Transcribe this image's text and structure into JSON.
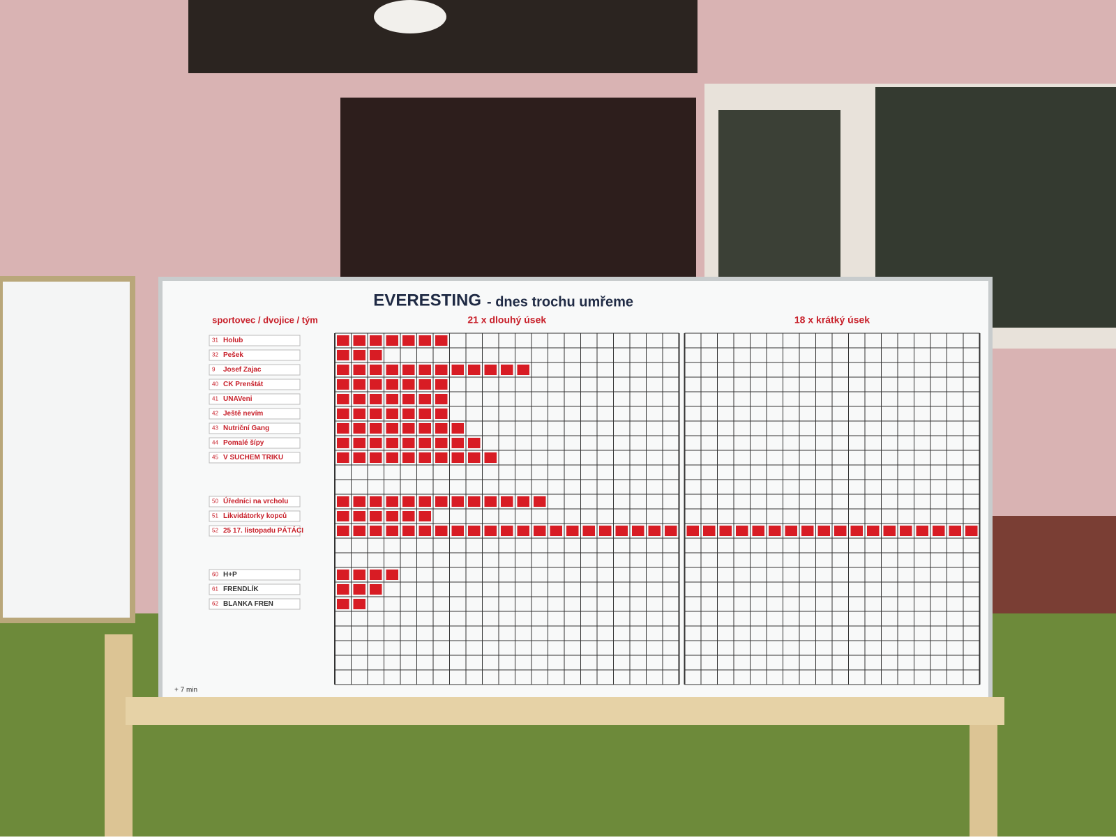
{
  "board": {
    "title": "EVERESTING",
    "subtitle": "- dnes trochu umřeme",
    "left_header": "sportovec / dvojice / tým",
    "sections": [
      {
        "label": "21 x dlouhý úsek",
        "columns": 21
      },
      {
        "label": "18 x krátký úsek",
        "columns": 18
      }
    ],
    "groups": [
      {
        "rows": [
          {
            "number": "31",
            "label": "Holub",
            "progress": 7
          },
          {
            "number": "32",
            "label": "Pešek",
            "progress": 3
          },
          {
            "number": "9",
            "label": "Josef Zajac",
            "progress": 12
          },
          {
            "number": "40",
            "label": "CK Prenštát",
            "progress": 7
          },
          {
            "number": "41",
            "label": "UNAVeni",
            "progress": 7
          },
          {
            "number": "42",
            "label": "Ještě nevím",
            "progress": 7
          },
          {
            "number": "43",
            "label": "Nutriční Gang",
            "progress": 8
          },
          {
            "number": "44",
            "label": "Pomalé šípy",
            "progress": 9
          },
          {
            "number": "45",
            "label": "V SUCHEM TRIKU",
            "progress": 10
          }
        ]
      },
      {
        "rows": [
          {
            "number": "50",
            "label": "Úředníci na vrcholu",
            "progress": 13
          },
          {
            "number": "51",
            "label": "Likvidátorky kopců",
            "progress": 6
          },
          {
            "number": "52",
            "label": "25 17. listopadu PÁTÁCI",
            "progress": 39
          }
        ]
      },
      {
        "rows": [
          {
            "number": "60",
            "label": "H+P",
            "progress": 4
          },
          {
            "number": "61",
            "label": "FRENDLÍK",
            "progress": 3
          },
          {
            "number": "62",
            "label": "BLANKA FREN",
            "progress": 2
          }
        ]
      }
    ],
    "footnote": "+ 7 min"
  }
}
